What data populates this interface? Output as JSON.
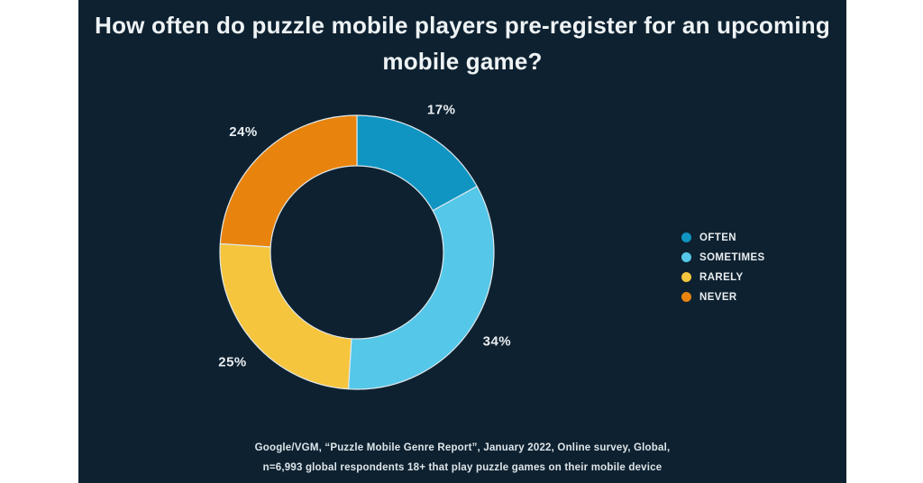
{
  "panel": {
    "background": "#0e2130"
  },
  "title": {
    "full_text": "How often do puzzle mobile players pre-register for an upcoming mobile game?",
    "line1": "How often do puzzle mobile players pre-register for an upcoming",
    "line2": "mobile game?"
  },
  "chart_data": {
    "type": "pie",
    "subtype": "donut",
    "title": "How often do puzzle mobile players pre-register for an upcoming mobile game?",
    "categories": [
      "OFTEN",
      "SOMETIMES",
      "RARELY",
      "NEVER"
    ],
    "values": [
      17,
      34,
      25,
      24
    ],
    "unit": "%",
    "data_labels": [
      "17%",
      "34%",
      "25%",
      "24%"
    ],
    "colors": [
      "#1095c3",
      "#55c7e9",
      "#f6c53e",
      "#e8840e"
    ],
    "slice_separator_color": "#dfe9ec",
    "start_angle": "top",
    "direction": "clockwise",
    "donut_hole_ratio": 0.63,
    "legend_position": "right",
    "label_color": "#e9eef1",
    "background": "#0e2130"
  },
  "footnote": {
    "line1": "Google/VGM, “Puzzle Mobile Genre Report”, January 2022, Online survey, Global,",
    "line2": "n=6,993 global respondents 18+ that play puzzle games on their mobile device"
  }
}
